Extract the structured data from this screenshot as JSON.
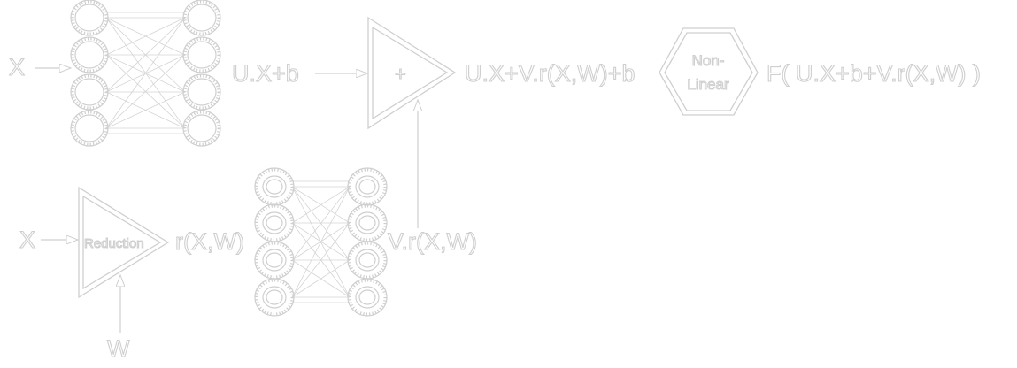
{
  "colors": {
    "background": "#ffffff",
    "stroke": "#cfcfcf"
  },
  "labels": {
    "input_x_top": "X",
    "linear_output": "U.X+b",
    "adder_symbol": "+",
    "sum_output": "U.X+V.r(X,W)+b",
    "nonlinear_line1": "Non-",
    "nonlinear_line2": "Linear",
    "final_output": "F( U.X+b+V.r(X,W) )",
    "input_x_bottom": "X",
    "reduction": "Reduction",
    "reduction_output": "r(X,W)",
    "weight_input": "W",
    "projected_output": "V.r(X,W)"
  }
}
